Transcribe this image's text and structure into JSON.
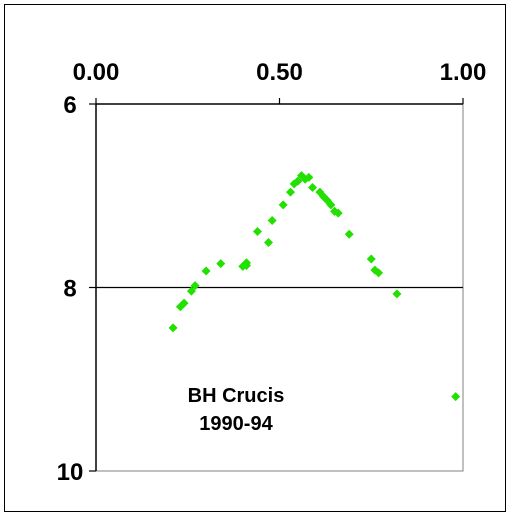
{
  "chart_data": {
    "type": "scatter",
    "title": "",
    "xlabel": "",
    "ylabel": "",
    "x_axis_position": "top",
    "y_inverted": true,
    "xlim": [
      0,
      1
    ],
    "ylim": [
      6,
      10
    ],
    "x_ticks": [
      "0.00",
      "0.50",
      "1.00"
    ],
    "y_ticks": [
      "6",
      "8",
      "10"
    ],
    "gridlines": "horizontal at 8",
    "marker_color": "#22e000",
    "marker_shape": "diamond",
    "annotation": [
      "BH Crucis",
      "1990-94"
    ],
    "series": [
      {
        "points": [
          [
            0.21,
            8.44
          ],
          [
            0.23,
            8.21
          ],
          [
            0.24,
            8.17
          ],
          [
            0.26,
            8.04
          ],
          [
            0.27,
            7.98
          ],
          [
            0.3,
            7.82
          ],
          [
            0.34,
            7.74
          ],
          [
            0.4,
            7.77
          ],
          [
            0.41,
            7.73
          ],
          [
            0.41,
            7.76
          ],
          [
            0.44,
            7.39
          ],
          [
            0.47,
            7.51
          ],
          [
            0.48,
            7.27
          ],
          [
            0.51,
            7.1
          ],
          [
            0.53,
            6.96
          ],
          [
            0.54,
            6.87
          ],
          [
            0.55,
            6.84
          ],
          [
            0.56,
            6.78
          ],
          [
            0.57,
            6.82
          ],
          [
            0.58,
            6.8
          ],
          [
            0.59,
            6.91
          ],
          [
            0.61,
            6.96
          ],
          [
            0.62,
            7.01
          ],
          [
            0.63,
            7.05
          ],
          [
            0.64,
            7.1
          ],
          [
            0.65,
            7.17
          ],
          [
            0.66,
            7.19
          ],
          [
            0.69,
            7.42
          ],
          [
            0.75,
            7.69
          ],
          [
            0.76,
            7.81
          ],
          [
            0.77,
            7.84
          ],
          [
            0.82,
            8.07
          ],
          [
            0.98,
            9.19
          ]
        ]
      }
    ]
  }
}
